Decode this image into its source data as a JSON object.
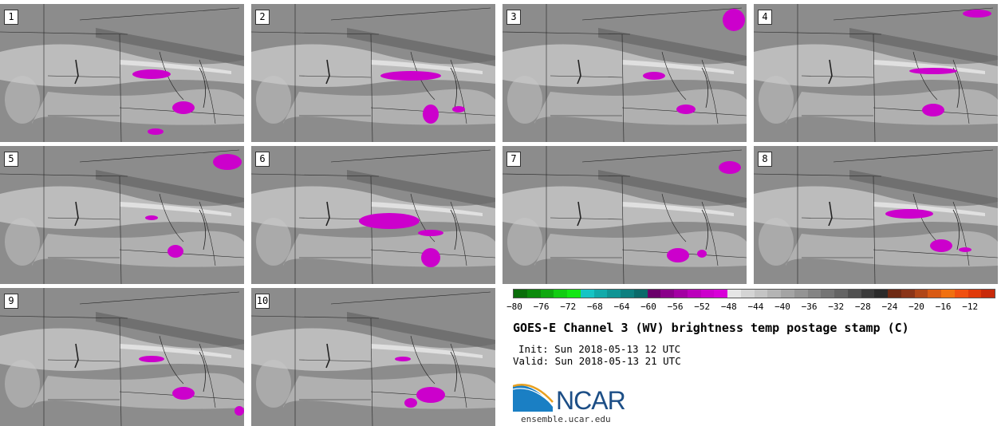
{
  "figure": {
    "title": "GOES-E Channel 3 (WV) brightness temp postage stamp (C)",
    "init_text": "Init: Sun 2018-05-13 12 UTC",
    "valid_text": "Valid: Sun 2018-05-13 21 UTC",
    "logo_text": "NCAR",
    "url_text": "ensemble.ucar.edu"
  },
  "panels": [
    {
      "label": "1"
    },
    {
      "label": "2"
    },
    {
      "label": "3"
    },
    {
      "label": "4"
    },
    {
      "label": "5"
    },
    {
      "label": "6"
    },
    {
      "label": "7"
    },
    {
      "label": "8"
    },
    {
      "label": "9"
    },
    {
      "label": "10"
    }
  ],
  "colorbar": {
    "ticks": [
      "−80",
      "−76",
      "−72",
      "−68",
      "−64",
      "−60",
      "−56",
      "−52",
      "−48",
      "−44",
      "−40",
      "−36",
      "−32",
      "−28",
      "−24",
      "−20",
      "−16",
      "−12"
    ],
    "colors": [
      "#0a6e0a",
      "#0b8a0b",
      "#0ea80e",
      "#12cc12",
      "#14e614",
      "#17c4c4",
      "#12aaaa",
      "#0f9494",
      "#0d7f7f",
      "#0b6a6a",
      "#6a006a",
      "#8a008a",
      "#a300a3",
      "#bb00bb",
      "#cc00cc",
      "#d800d8",
      "#e6e6e6",
      "#d4d4d4",
      "#c4c4c4",
      "#b4b4b4",
      "#a4a4a4",
      "#949494",
      "#848484",
      "#747474",
      "#646464",
      "#505050",
      "#3a3a3a",
      "#2a2a2a",
      "#6e2a14",
      "#8a3418",
      "#b04618",
      "#d85a14",
      "#f07010",
      "#f05010",
      "#e03a0a",
      "#c82a0a"
    ]
  },
  "map_colors": {
    "background": "#8c8c8c",
    "light": "#c8c8c8",
    "lighter": "#e6e6e6",
    "dark": "#646464",
    "magenta": "#cc00cc",
    "border": "#222222"
  }
}
